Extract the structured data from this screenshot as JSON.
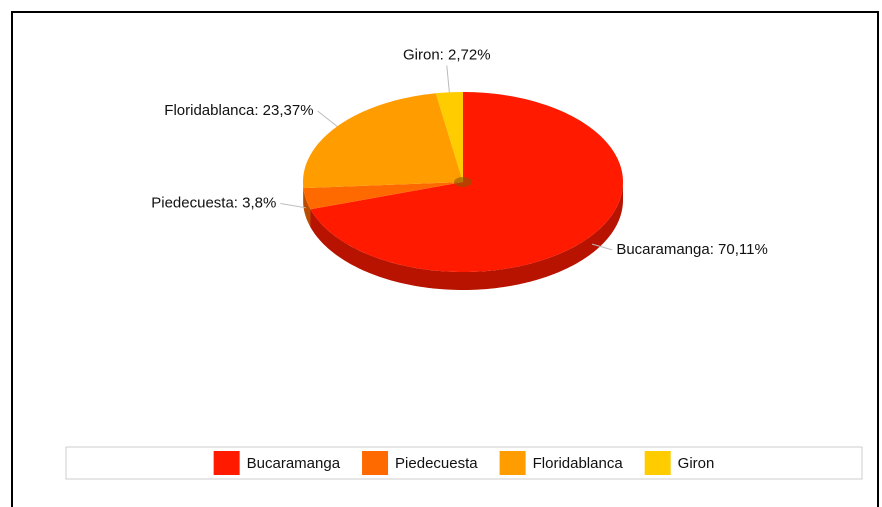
{
  "chart_data": {
    "type": "pie",
    "categories": [
      "Bucaramanga",
      "Piedecuesta",
      "Floridablanca",
      "Giron"
    ],
    "values": [
      70.11,
      3.8,
      23.37,
      2.72
    ],
    "value_labels": [
      "Bucaramanga: 70,11%",
      "Piedecuesta: 3,8%",
      "Floridablanca: 23,37%",
      "Giron: 2,72%"
    ],
    "colors": [
      "#ff1a00",
      "#ff6a00",
      "#ff9c00",
      "#ffcc00"
    ],
    "legend": "bottom"
  }
}
